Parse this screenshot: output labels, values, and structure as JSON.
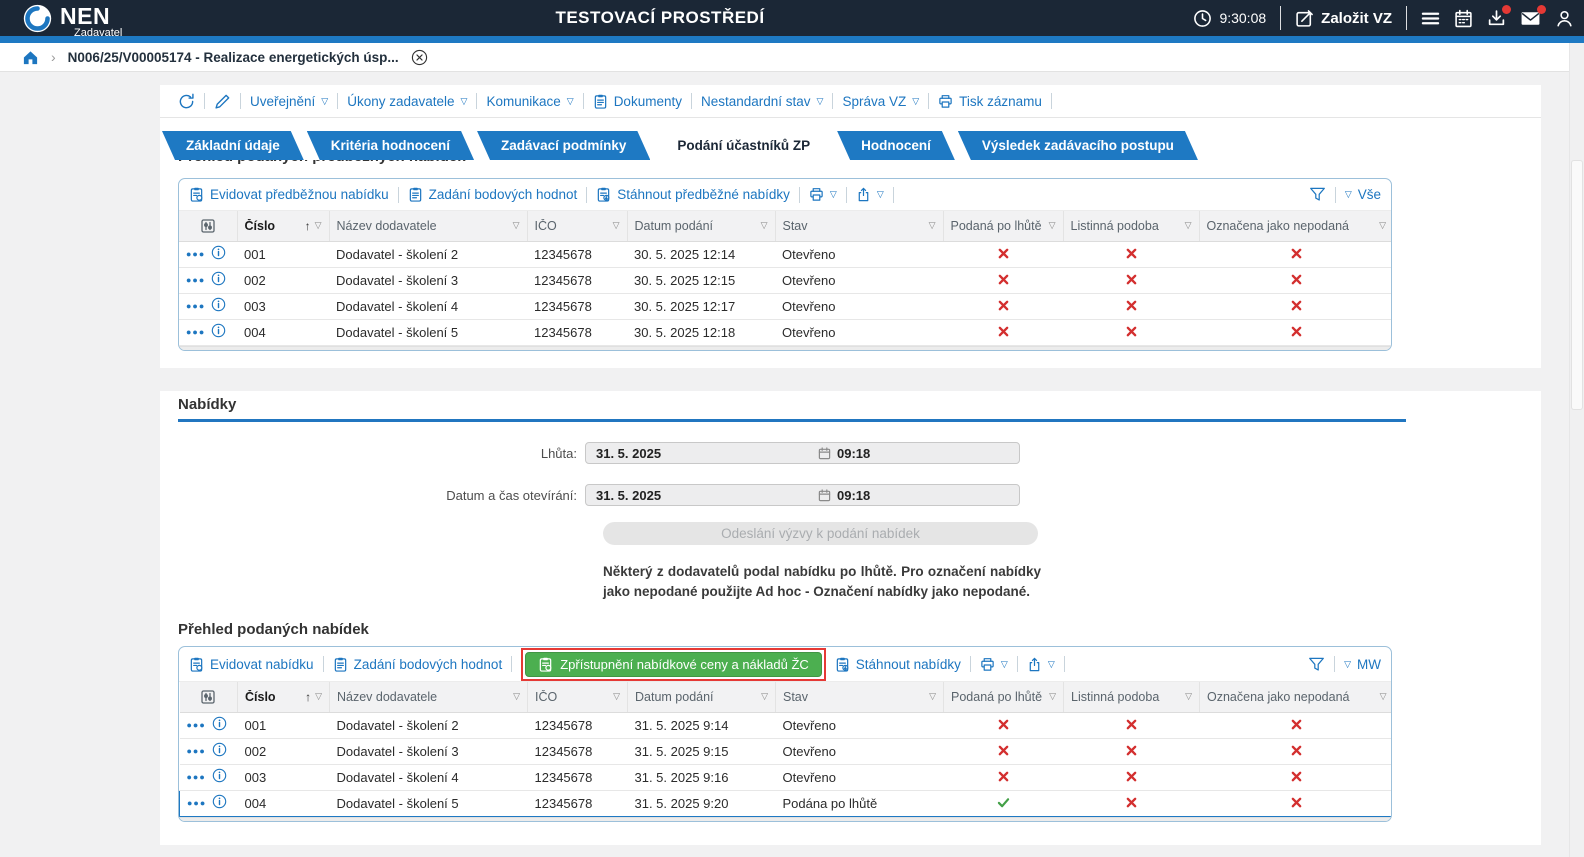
{
  "topbar": {
    "brand": "NEN",
    "brand_sub": "Zadavatel",
    "environment_title": "TESTOVACÍ PROSTŘEDÍ",
    "clock": "9:30:08",
    "create_vz_label": "Založit VZ"
  },
  "breadcrumb": {
    "current_record": "N006/25/V00005174 - Realizace energetických úsp..."
  },
  "record_toolbar": {
    "items": [
      "Uveřejnění",
      "Úkony zadavatele",
      "Komunikace",
      "Dokumenty",
      "Nestandardní stav",
      "Správa VZ",
      "Tisk záznamu"
    ]
  },
  "tabs": [
    {
      "label": "Základní údaje",
      "active": false
    },
    {
      "label": "Kritéria hodnocení",
      "active": false
    },
    {
      "label": "Zadávací podmínky",
      "active": false
    },
    {
      "label": "Podání účastníků ZP",
      "active": true
    },
    {
      "label": "Hodnocení",
      "active": false
    },
    {
      "label": "Výsledek zadávacího postupu",
      "active": false
    }
  ],
  "preliminary_offers": {
    "section_title": "Přehled podaných předběžných nabídek",
    "actions": [
      "Evidovat předběžnou nabídku",
      "Zadání bodových hodnot",
      "Stáhnout předběžné nabídky"
    ],
    "filter_view_label": "Vše"
  },
  "offers": {
    "section_title": "Nabídky",
    "deadline_label": "Lhůta:",
    "deadline_date": "31. 5. 2025",
    "deadline_time": "09:18",
    "opening_label": "Datum a čas otevírání:",
    "opening_date": "31. 5. 2025",
    "opening_time": "09:18",
    "send_call_button": "Odeslání výzvy k podání nabídek",
    "late_warning": "Některý z dodavatelů podal nabídku po lhůtě. Pro označení nabídky jako nepodané použijte Ad hoc - Označení nabídky jako nepodané.",
    "table_title": "Přehled podaných nabídek",
    "actions": [
      "Evidovat nabídku",
      "Zadání bodových hodnot"
    ],
    "highlighted_action": "Zpřístupnění nabídkové ceny a nákladů ŽC",
    "actions_after": [
      "Stáhnout nabídky"
    ],
    "filter_view_label": "MW"
  },
  "table_columns": [
    {
      "label": "",
      "type": "tools"
    },
    {
      "label": "Číslo",
      "key": "cislo",
      "sorted": "asc"
    },
    {
      "label": "Název dodavatele",
      "key": "nazev"
    },
    {
      "label": "IČO",
      "key": "ico"
    },
    {
      "label": "Datum podání",
      "key": "datum"
    },
    {
      "label": "Stav",
      "key": "stav"
    },
    {
      "label": "Podaná po lhůtě",
      "key": "po_lhute",
      "type": "bool"
    },
    {
      "label": "Listinná podoba",
      "key": "listinna",
      "type": "bool"
    },
    {
      "label": "Označena jako nepodaná",
      "key": "nepodana",
      "type": "bool"
    }
  ],
  "preliminary_table_rows": [
    {
      "cislo": "001",
      "nazev": "Dodavatel - školení 2",
      "ico": "12345678",
      "datum": "30. 5. 2025 12:14",
      "stav": "Otevřeno",
      "po_lhute": "x",
      "listinna": "x",
      "nepodana": "x"
    },
    {
      "cislo": "002",
      "nazev": "Dodavatel - školení 3",
      "ico": "12345678",
      "datum": "30. 5. 2025 12:15",
      "stav": "Otevřeno",
      "po_lhute": "x",
      "listinna": "x",
      "nepodana": "x"
    },
    {
      "cislo": "003",
      "nazev": "Dodavatel - školení 4",
      "ico": "12345678",
      "datum": "30. 5. 2025 12:17",
      "stav": "Otevřeno",
      "po_lhute": "x",
      "listinna": "x",
      "nepodana": "x"
    },
    {
      "cislo": "004",
      "nazev": "Dodavatel - školení 5",
      "ico": "12345678",
      "datum": "30. 5. 2025 12:18",
      "stav": "Otevřeno",
      "po_lhute": "x",
      "listinna": "x",
      "nepodana": "x"
    }
  ],
  "offers_table_rows": [
    {
      "cislo": "001",
      "nazev": "Dodavatel - školení 2",
      "ico": "12345678",
      "datum": "31. 5. 2025 9:14",
      "stav": "Otevřeno",
      "po_lhute": "x",
      "listinna": "x",
      "nepodana": "x",
      "selected": false
    },
    {
      "cislo": "002",
      "nazev": "Dodavatel - školení 3",
      "ico": "12345678",
      "datum": "31. 5. 2025 9:15",
      "stav": "Otevřeno",
      "po_lhute": "x",
      "listinna": "x",
      "nepodana": "x",
      "selected": false
    },
    {
      "cislo": "003",
      "nazev": "Dodavatel - školení 4",
      "ico": "12345678",
      "datum": "31. 5. 2025 9:16",
      "stav": "Otevřeno",
      "po_lhute": "x",
      "listinna": "x",
      "nepodana": "x",
      "selected": false
    },
    {
      "cislo": "004",
      "nazev": "Dodavatel - školení 5",
      "ico": "12345678",
      "datum": "31. 5. 2025 9:20",
      "stav": "Podána po lhůtě",
      "po_lhute": "check",
      "listinna": "x",
      "nepodana": "x",
      "selected": true
    }
  ],
  "icons": {
    "row_menu": "three-dots",
    "row_info": "info-circle",
    "bool_true": "green-check",
    "bool_false": "red-x",
    "column_dropdown": "▽",
    "sort_ascending": "↑"
  },
  "colors": {
    "header_navy": "#1b2736",
    "accent_blue": "#1e79c3",
    "link_blue": "#1d76c0",
    "green_button": "#4caf50",
    "red_x": "#d32f2f",
    "green_check": "#43a047",
    "highlight_red": "#e53935",
    "panel_border": "#9cc0da"
  }
}
